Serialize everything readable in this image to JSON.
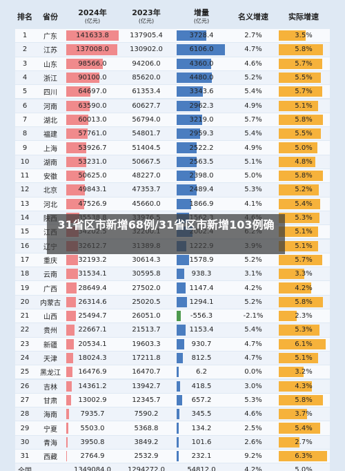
{
  "table": {
    "header": [
      {
        "label": "排名"
      },
      {
        "label": "省份"
      },
      {
        "label": "2024年",
        "unit": "(亿元)"
      },
      {
        "label": "2023年",
        "unit": "(亿元)"
      },
      {
        "label": "增量",
        "unit": "(亿元)"
      },
      {
        "label": "名义增速"
      },
      {
        "label": "实际增速"
      }
    ],
    "rows": [
      [
        "1",
        "广东",
        "141633.8",
        "137905.4",
        "3728.4",
        "2.7%",
        "3.5%"
      ],
      [
        "2",
        "江苏",
        "137008.0",
        "130902.0",
        "6106.0",
        "4.7%",
        "5.8%"
      ],
      [
        "3",
        "山东",
        "98566.0",
        "94206.0",
        "4360.0",
        "4.6%",
        "5.7%"
      ],
      [
        "4",
        "浙江",
        "90100.0",
        "85620.0",
        "4480.0",
        "5.2%",
        "5.5%"
      ],
      [
        "5",
        "四川",
        "64697.0",
        "61353.4",
        "3343.6",
        "5.4%",
        "5.7%"
      ],
      [
        "6",
        "河南",
        "63590.0",
        "60627.7",
        "2962.3",
        "4.9%",
        "5.1%"
      ],
      [
        "7",
        "湖北",
        "60013.0",
        "56794.0",
        "3219.0",
        "5.7%",
        "5.8%"
      ],
      [
        "8",
        "福建",
        "57761.0",
        "54801.7",
        "2959.3",
        "5.4%",
        "5.5%"
      ],
      [
        "9",
        "上海",
        "53926.7",
        "51404.5",
        "2522.2",
        "4.9%",
        "5.0%"
      ],
      [
        "10",
        "湖南",
        "53231.0",
        "50667.5",
        "2563.5",
        "5.1%",
        "4.8%"
      ],
      [
        "11",
        "安徽",
        "50625.0",
        "48227.0",
        "2398.0",
        "5.0%",
        "5.8%"
      ],
      [
        "12",
        "北京",
        "49843.1",
        "47353.7",
        "2489.4",
        "5.3%",
        "5.2%"
      ],
      [
        "13",
        "河北",
        "47526.9",
        "45660.0",
        "1866.9",
        "4.1%",
        "5.4%"
      ],
      [
        "14",
        "陕西",
        "35538.8",
        "33976.5",
        "1562.3",
        "4.6%",
        "5.3%"
      ],
      [
        "15",
        "江西",
        "34202.5",
        "32200.1",
        "2002.4",
        "6.2%",
        "5.1%"
      ],
      [
        "16",
        "辽宁",
        "32612.7",
        "31389.8",
        "1222.9",
        "3.9%",
        "5.1%"
      ],
      [
        "17",
        "重庆",
        "32193.2",
        "30614.3",
        "1578.9",
        "5.2%",
        "5.7%"
      ],
      [
        "18",
        "云南",
        "31534.1",
        "30595.8",
        "938.3",
        "3.1%",
        "3.3%"
      ],
      [
        "19",
        "广西",
        "28649.4",
        "27502.0",
        "1147.4",
        "4.2%",
        "4.2%"
      ],
      [
        "20",
        "内蒙古",
        "26314.6",
        "25020.5",
        "1294.1",
        "5.2%",
        "5.8%"
      ],
      [
        "21",
        "山西",
        "25494.7",
        "26051.0",
        "-556.3",
        "-2.1%",
        "2.3%"
      ],
      [
        "22",
        "贵州",
        "22667.1",
        "21513.7",
        "1153.4",
        "5.4%",
        "5.3%"
      ],
      [
        "23",
        "新疆",
        "20534.1",
        "19603.3",
        "930.7",
        "4.7%",
        "6.1%"
      ],
      [
        "24",
        "天津",
        "18024.3",
        "17211.8",
        "812.5",
        "4.7%",
        "5.1%"
      ],
      [
        "25",
        "黑龙江",
        "16476.9",
        "16470.7",
        "6.2",
        "0.0%",
        "3.2%"
      ],
      [
        "26",
        "吉林",
        "14361.2",
        "13942.7",
        "418.5",
        "3.0%",
        "4.3%"
      ],
      [
        "27",
        "甘肃",
        "13002.9",
        "12345.7",
        "657.2",
        "5.3%",
        "5.8%"
      ],
      [
        "28",
        "海南",
        "7935.7",
        "7590.2",
        "345.5",
        "4.6%",
        "3.7%"
      ],
      [
        "29",
        "宁夏",
        "5503.0",
        "5368.8",
        "134.2",
        "2.5%",
        "5.4%"
      ],
      [
        "30",
        "青海",
        "3950.8",
        "3849.2",
        "101.6",
        "2.6%",
        "2.7%"
      ],
      [
        "31",
        "西藏",
        "2764.9",
        "2532.9",
        "232.1",
        "9.2%",
        "6.3%"
      ],
      [
        "全国",
        "",
        "1349084.0",
        "1294272.0",
        "54812.0",
        "4.2%",
        "5.0%"
      ]
    ]
  },
  "overlay": "31省区市新增68例/31省区市新增103例确"
}
